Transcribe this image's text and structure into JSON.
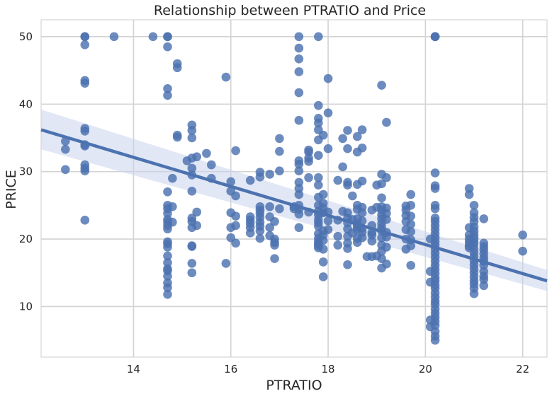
{
  "chart_data": {
    "type": "scatter",
    "title": "Relationship between PTRATIO and Price",
    "xlabel": "PTRATIO",
    "ylabel": "PRICE",
    "xlim": [
      12.1,
      22.5
    ],
    "ylim": [
      2.5,
      52.5
    ],
    "xticks": [
      14,
      16,
      18,
      20,
      22
    ],
    "yticks": [
      10,
      20,
      30,
      40,
      50
    ],
    "grid": true,
    "colors": {
      "background": "#ffffff",
      "grid": "#d3d3d3",
      "points": "#4c72b0",
      "regression_line": "#4c72b0",
      "confidence_band": "#c8d4ec"
    },
    "regression": {
      "x": [
        12.1,
        22.5
      ],
      "y": [
        36.2,
        13.8
      ],
      "ci_lower": [
        33.3,
        12.3
      ],
      "ci_upper": [
        39.2,
        15.4
      ]
    },
    "points": [
      [
        12.6,
        34.5
      ],
      [
        12.6,
        33.3
      ],
      [
        12.6,
        30.3
      ],
      [
        13.0,
        50
      ],
      [
        13.0,
        50
      ],
      [
        13.0,
        48.8
      ],
      [
        13.0,
        43.5
      ],
      [
        13.0,
        43.1
      ],
      [
        13.0,
        36.4
      ],
      [
        13.0,
        36.0
      ],
      [
        13.0,
        34.0
      ],
      [
        13.0,
        33.8
      ],
      [
        13.0,
        31.0
      ],
      [
        13.0,
        30.5
      ],
      [
        13.0,
        30.1
      ],
      [
        13.0,
        22.8
      ],
      [
        13.6,
        50
      ],
      [
        14.4,
        50
      ],
      [
        14.7,
        50
      ],
      [
        14.7,
        50
      ],
      [
        14.7,
        48.5
      ],
      [
        14.7,
        42.3
      ],
      [
        14.7,
        41.3
      ],
      [
        14.7,
        27.0
      ],
      [
        14.7,
        25.0
      ],
      [
        14.7,
        24.5
      ],
      [
        14.7,
        23.8
      ],
      [
        14.7,
        22.9
      ],
      [
        14.7,
        22.5
      ],
      [
        14.7,
        22.0
      ],
      [
        14.7,
        21.5
      ],
      [
        14.7,
        19.6
      ],
      [
        14.7,
        19.3
      ],
      [
        14.7,
        18.8
      ],
      [
        14.7,
        17.5
      ],
      [
        14.7,
        16.5
      ],
      [
        14.7,
        15.6
      ],
      [
        14.7,
        15.3
      ],
      [
        14.7,
        14.5
      ],
      [
        14.7,
        13.5
      ],
      [
        14.7,
        12.8
      ],
      [
        14.7,
        11.8
      ],
      [
        14.8,
        29.0
      ],
      [
        14.8,
        24.8
      ],
      [
        14.8,
        22.5
      ],
      [
        14.9,
        46.0
      ],
      [
        14.9,
        45.4
      ],
      [
        14.9,
        35.4
      ],
      [
        14.9,
        35.1
      ],
      [
        15.1,
        31.6
      ],
      [
        15.2,
        36.9
      ],
      [
        15.2,
        36.1
      ],
      [
        15.2,
        35.0
      ],
      [
        15.2,
        32.0
      ],
      [
        15.2,
        30.5
      ],
      [
        15.2,
        29.5
      ],
      [
        15.2,
        27.1
      ],
      [
        15.2,
        23.1
      ],
      [
        15.2,
        22.6
      ],
      [
        15.2,
        21.7
      ],
      [
        15.2,
        19.0
      ],
      [
        15.2,
        18.9
      ],
      [
        15.2,
        16.4
      ],
      [
        15.2,
        15.0
      ],
      [
        15.3,
        32.2
      ],
      [
        15.3,
        24.0
      ],
      [
        15.3,
        22.0
      ],
      [
        15.5,
        32.7
      ],
      [
        15.6,
        31.0
      ],
      [
        15.6,
        29.0
      ],
      [
        15.9,
        44.0
      ],
      [
        15.9,
        16.4
      ],
      [
        16.0,
        28.5
      ],
      [
        16.0,
        27.1
      ],
      [
        16.0,
        23.9
      ],
      [
        16.0,
        21.7
      ],
      [
        16.0,
        20.2
      ],
      [
        16.1,
        33.1
      ],
      [
        16.1,
        26.4
      ],
      [
        16.1,
        23.4
      ],
      [
        16.1,
        22.0
      ],
      [
        16.1,
        19.4
      ],
      [
        16.4,
        28.7
      ],
      [
        16.4,
        23.3
      ],
      [
        16.4,
        22.8
      ],
      [
        16.4,
        22.3
      ],
      [
        16.4,
        21.7
      ],
      [
        16.4,
        20.9
      ],
      [
        16.6,
        29.9
      ],
      [
        16.6,
        29.2
      ],
      [
        16.6,
        24.8
      ],
      [
        16.6,
        24.3
      ],
      [
        16.6,
        23.8
      ],
      [
        16.6,
        23.2
      ],
      [
        16.6,
        22.5
      ],
      [
        16.6,
        21.9
      ],
      [
        16.6,
        21.2
      ],
      [
        16.6,
        20.1
      ],
      [
        16.8,
        29.6
      ],
      [
        16.8,
        24.8
      ],
      [
        16.8,
        23.3
      ],
      [
        16.8,
        21.7
      ],
      [
        16.8,
        20.5
      ],
      [
        16.9,
        22.6
      ],
      [
        16.9,
        20.0
      ],
      [
        16.9,
        19.5
      ],
      [
        16.9,
        19.1
      ],
      [
        16.9,
        17.1
      ],
      [
        17.0,
        34.9
      ],
      [
        17.0,
        33.0
      ],
      [
        17.0,
        30.1
      ],
      [
        17.0,
        24.5
      ],
      [
        17.3,
        24.8
      ],
      [
        17.3,
        24.5
      ],
      [
        17.4,
        50
      ],
      [
        17.4,
        48.3
      ],
      [
        17.4,
        46.7
      ],
      [
        17.4,
        44.8
      ],
      [
        17.4,
        41.7
      ],
      [
        17.4,
        37.6
      ],
      [
        17.4,
        31.6
      ],
      [
        17.4,
        31.1
      ],
      [
        17.4,
        30.1
      ],
      [
        17.4,
        28.4
      ],
      [
        17.4,
        27.5
      ],
      [
        17.4,
        26.6
      ],
      [
        17.4,
        25.0
      ],
      [
        17.4,
        24.4
      ],
      [
        17.4,
        23.7
      ],
      [
        17.4,
        21.7
      ],
      [
        17.6,
        33.2
      ],
      [
        17.6,
        32.9
      ],
      [
        17.6,
        32.0
      ],
      [
        17.6,
        31.5
      ],
      [
        17.6,
        29.1
      ],
      [
        17.6,
        24.0
      ],
      [
        17.8,
        50
      ],
      [
        17.8,
        39.8
      ],
      [
        17.8,
        37.9
      ],
      [
        17.8,
        37.2
      ],
      [
        17.8,
        36.2
      ],
      [
        17.8,
        34.7
      ],
      [
        17.8,
        32.4
      ],
      [
        17.8,
        29.1
      ],
      [
        17.8,
        28.0
      ],
      [
        17.8,
        26.2
      ],
      [
        17.8,
        25.0
      ],
      [
        17.8,
        24.1
      ],
      [
        17.8,
        23.6
      ],
      [
        17.8,
        22.9
      ],
      [
        17.8,
        22.4
      ],
      [
        17.8,
        21.9
      ],
      [
        17.8,
        20.8
      ],
      [
        17.8,
        20.1
      ],
      [
        17.8,
        19.6
      ],
      [
        17.8,
        19.3
      ],
      [
        17.8,
        19.0
      ],
      [
        17.8,
        18.7
      ],
      [
        17.9,
        35.4
      ],
      [
        17.9,
        26.6
      ],
      [
        17.9,
        25.3
      ],
      [
        17.9,
        24.6
      ],
      [
        17.9,
        23.9
      ],
      [
        17.9,
        21.2
      ],
      [
        17.9,
        20.6
      ],
      [
        17.9,
        19.8
      ],
      [
        17.9,
        18.5
      ],
      [
        17.9,
        16.6
      ],
      [
        17.9,
        14.4
      ],
      [
        18.0,
        43.8
      ],
      [
        18.0,
        38.7
      ],
      [
        18.0,
        33.4
      ],
      [
        18.0,
        24.0
      ],
      [
        18.0,
        22.7
      ],
      [
        18.0,
        21.4
      ],
      [
        18.2,
        28.7
      ],
      [
        18.2,
        22.8
      ],
      [
        18.2,
        20.4
      ],
      [
        18.2,
        19.1
      ],
      [
        18.3,
        34.9
      ],
      [
        18.3,
        30.7
      ],
      [
        18.3,
        24.1
      ],
      [
        18.4,
        36.1
      ],
      [
        18.4,
        33.4
      ],
      [
        18.4,
        28.4
      ],
      [
        18.4,
        28.0
      ],
      [
        18.4,
        23.9
      ],
      [
        18.4,
        23.1
      ],
      [
        18.4,
        22.4
      ],
      [
        18.4,
        21.5
      ],
      [
        18.4,
        20.4
      ],
      [
        18.4,
        19.4
      ],
      [
        18.4,
        18.6
      ],
      [
        18.4,
        16.2
      ],
      [
        18.5,
        26.4
      ],
      [
        18.5,
        22.9
      ],
      [
        18.5,
        20.9
      ],
      [
        18.6,
        35.2
      ],
      [
        18.6,
        32.9
      ],
      [
        18.6,
        28.1
      ],
      [
        18.6,
        25.0
      ],
      [
        18.6,
        24.4
      ],
      [
        18.6,
        23.0
      ],
      [
        18.6,
        22.2
      ],
      [
        18.6,
        21.8
      ],
      [
        18.6,
        21.4
      ],
      [
        18.6,
        20.1
      ],
      [
        18.6,
        19.5
      ],
      [
        18.7,
        36.2
      ],
      [
        18.7,
        33.5
      ],
      [
        18.7,
        28.6
      ],
      [
        18.7,
        24.7
      ],
      [
        18.7,
        23.9
      ],
      [
        18.7,
        22.7
      ],
      [
        18.7,
        21.6
      ],
      [
        18.7,
        21.0
      ],
      [
        18.7,
        20.2
      ],
      [
        18.8,
        17.4
      ],
      [
        18.9,
        24.3
      ],
      [
        18.9,
        22.0
      ],
      [
        18.9,
        21.0
      ],
      [
        18.9,
        20.6
      ],
      [
        18.9,
        19.7
      ],
      [
        18.9,
        17.4
      ],
      [
        19.0,
        28.0
      ],
      [
        19.0,
        24.7
      ],
      [
        19.0,
        17.5
      ],
      [
        19.1,
        42.8
      ],
      [
        19.1,
        29.6
      ],
      [
        19.1,
        28.2
      ],
      [
        19.1,
        26.1
      ],
      [
        19.1,
        24.8
      ],
      [
        19.1,
        24.3
      ],
      [
        19.1,
        23.6
      ],
      [
        19.1,
        23.0
      ],
      [
        19.1,
        22.3
      ],
      [
        19.1,
        21.7
      ],
      [
        19.1,
        21.2
      ],
      [
        19.1,
        20.2
      ],
      [
        19.1,
        19.1
      ],
      [
        19.1,
        18.2
      ],
      [
        19.1,
        17.1
      ],
      [
        19.1,
        15.7
      ],
      [
        19.2,
        37.3
      ],
      [
        19.2,
        29.1
      ],
      [
        19.2,
        24.6
      ],
      [
        19.2,
        23.8
      ],
      [
        19.2,
        22.9
      ],
      [
        19.2,
        21.0
      ],
      [
        19.2,
        20.3
      ],
      [
        19.2,
        18.8
      ],
      [
        19.2,
        16.3
      ],
      [
        19.6,
        24.9
      ],
      [
        19.6,
        24.3
      ],
      [
        19.6,
        23.5
      ],
      [
        19.6,
        22.6
      ],
      [
        19.6,
        21.4
      ],
      [
        19.6,
        20.0
      ],
      [
        19.6,
        18.5
      ],
      [
        19.7,
        26.6
      ],
      [
        19.7,
        25.0
      ],
      [
        19.7,
        23.4
      ],
      [
        19.7,
        22.2
      ],
      [
        19.7,
        21.1
      ],
      [
        19.7,
        19.9
      ],
      [
        19.7,
        19.0
      ],
      [
        19.7,
        16.1
      ],
      [
        20.1,
        20.0
      ],
      [
        20.1,
        15.2
      ],
      [
        20.1,
        13.6
      ],
      [
        20.1,
        8.0
      ],
      [
        20.1,
        7.0
      ],
      [
        20.2,
        50
      ],
      [
        20.2,
        50
      ],
      [
        20.2,
        50
      ],
      [
        20.2,
        29.8
      ],
      [
        20.2,
        27.9
      ],
      [
        20.2,
        27.5
      ],
      [
        20.2,
        25.0
      ],
      [
        20.2,
        24.5
      ],
      [
        20.2,
        23.1
      ],
      [
        20.2,
        22.6
      ],
      [
        20.2,
        22.0
      ],
      [
        20.2,
        21.4
      ],
      [
        20.2,
        20.8
      ],
      [
        20.2,
        20.2
      ],
      [
        20.2,
        19.6
      ],
      [
        20.2,
        19.1
      ],
      [
        20.2,
        18.5
      ],
      [
        20.2,
        17.9
      ],
      [
        20.2,
        17.3
      ],
      [
        20.2,
        16.7
      ],
      [
        20.2,
        16.1
      ],
      [
        20.2,
        15.5
      ],
      [
        20.2,
        14.9
      ],
      [
        20.2,
        14.3
      ],
      [
        20.2,
        13.8
      ],
      [
        20.2,
        13.2
      ],
      [
        20.2,
        12.7
      ],
      [
        20.2,
        12.0
      ],
      [
        20.2,
        11.4
      ],
      [
        20.2,
        10.8
      ],
      [
        20.2,
        10.3
      ],
      [
        20.2,
        9.6
      ],
      [
        20.2,
        9.0
      ],
      [
        20.2,
        8.4
      ],
      [
        20.2,
        7.8
      ],
      [
        20.2,
        7.2
      ],
      [
        20.2,
        6.3
      ],
      [
        20.2,
        5.6
      ],
      [
        20.2,
        5.0
      ],
      [
        20.9,
        27.5
      ],
      [
        20.9,
        26.6
      ],
      [
        20.9,
        21.7
      ],
      [
        20.9,
        20.6
      ],
      [
        20.9,
        20.0
      ],
      [
        20.9,
        19.5
      ],
      [
        20.9,
        19.0
      ],
      [
        20.9,
        18.7
      ],
      [
        21.0,
        25.0
      ],
      [
        21.0,
        23.9
      ],
      [
        21.0,
        23.2
      ],
      [
        21.0,
        22.6
      ],
      [
        21.0,
        21.8
      ],
      [
        21.0,
        21.2
      ],
      [
        21.0,
        20.6
      ],
      [
        21.0,
        20.1
      ],
      [
        21.0,
        19.6
      ],
      [
        21.0,
        19.2
      ],
      [
        21.0,
        18.6
      ],
      [
        21.0,
        18.0
      ],
      [
        21.0,
        17.4
      ],
      [
        21.0,
        16.8
      ],
      [
        21.0,
        16.2
      ],
      [
        21.0,
        15.6
      ],
      [
        21.0,
        15.0
      ],
      [
        21.0,
        14.4
      ],
      [
        21.0,
        13.8
      ],
      [
        21.0,
        13.3
      ],
      [
        21.0,
        12.7
      ],
      [
        21.0,
        11.9
      ],
      [
        21.2,
        23.0
      ],
      [
        21.2,
        19.4
      ],
      [
        21.2,
        18.9
      ],
      [
        21.2,
        18.4
      ],
      [
        21.2,
        17.8
      ],
      [
        21.2,
        17.2
      ],
      [
        21.2,
        16.7
      ],
      [
        21.2,
        16.1
      ],
      [
        21.2,
        15.2
      ],
      [
        21.2,
        14.5
      ],
      [
        21.2,
        14.0
      ],
      [
        21.2,
        13.1
      ],
      [
        22.0,
        20.6
      ],
      [
        22.0,
        18.2
      ]
    ]
  }
}
